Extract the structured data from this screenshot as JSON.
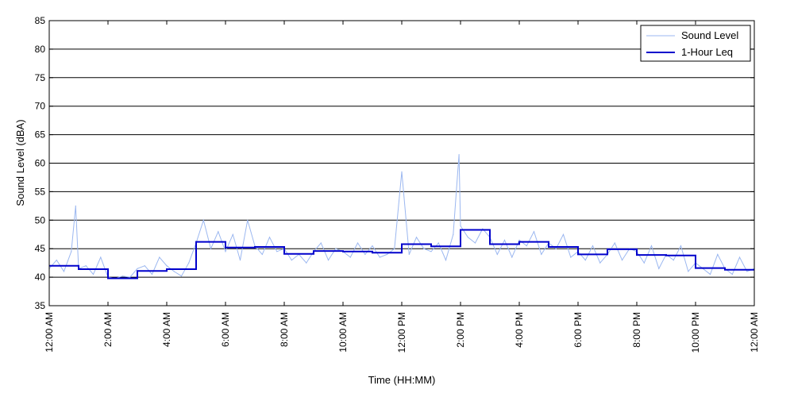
{
  "chart_data": {
    "type": "line",
    "xlabel": "Time (HH:MM)",
    "ylabel": "Sound Level (dBA)",
    "ylim": [
      35,
      85
    ],
    "yticks": [
      35,
      40,
      45,
      50,
      55,
      60,
      65,
      70,
      75,
      80,
      85
    ],
    "xlim": [
      0,
      24
    ],
    "xticks": [
      {
        "hour": 0,
        "label": "12:00 AM"
      },
      {
        "hour": 2,
        "label": "2:00 AM"
      },
      {
        "hour": 4,
        "label": "4:00 AM"
      },
      {
        "hour": 6,
        "label": "6:00 AM"
      },
      {
        "hour": 8,
        "label": "8:00 AM"
      },
      {
        "hour": 10,
        "label": "10:00 AM"
      },
      {
        "hour": 12,
        "label": "12:00 PM"
      },
      {
        "hour": 14,
        "label": "2:00 PM"
      },
      {
        "hour": 16,
        "label": "4:00 PM"
      },
      {
        "hour": 18,
        "label": "6:00 PM"
      },
      {
        "hour": 20,
        "label": "8:00 PM"
      },
      {
        "hour": 22,
        "label": "10:00 PM"
      },
      {
        "hour": 24,
        "label": "12:00 AM"
      }
    ],
    "grid": "horizontal",
    "legend_position": "top-right",
    "series": [
      {
        "name": "Sound Level",
        "color": "#9bb7f0",
        "x": [
          0,
          0.25,
          0.5,
          0.75,
          0.9,
          1.0,
          1.25,
          1.5,
          1.75,
          2.0,
          2.25,
          2.5,
          2.75,
          3.0,
          3.25,
          3.5,
          3.75,
          4.0,
          4.25,
          4.5,
          4.75,
          5.0,
          5.25,
          5.5,
          5.75,
          6.0,
          6.25,
          6.5,
          6.75,
          7.0,
          7.25,
          7.5,
          7.75,
          8.0,
          8.25,
          8.5,
          8.75,
          9.0,
          9.25,
          9.5,
          9.75,
          10.0,
          10.25,
          10.5,
          10.75,
          11.0,
          11.25,
          11.5,
          11.75,
          12.0,
          12.25,
          12.5,
          12.75,
          13.0,
          13.25,
          13.5,
          13.75,
          13.95,
          14.0,
          14.25,
          14.5,
          14.75,
          15.0,
          15.25,
          15.5,
          15.75,
          16.0,
          16.25,
          16.5,
          16.75,
          17.0,
          17.25,
          17.5,
          17.75,
          18.0,
          18.25,
          18.5,
          18.75,
          19.0,
          19.25,
          19.5,
          19.75,
          20.0,
          20.25,
          20.5,
          20.75,
          21.0,
          21.25,
          21.5,
          21.75,
          22.0,
          22.25,
          22.5,
          22.75,
          23.0,
          23.25,
          23.5,
          23.75,
          24.0
        ],
        "values": [
          41.5,
          43,
          41,
          44.5,
          52.5,
          41.5,
          42,
          40.5,
          43.5,
          40,
          39.8,
          40.2,
          40,
          41.5,
          42,
          40.5,
          43.5,
          42,
          41,
          40.2,
          42.5,
          46,
          50,
          45,
          48,
          44.5,
          47.5,
          43,
          50,
          45.5,
          44,
          47,
          44.5,
          45,
          43,
          44,
          42.5,
          44.5,
          46,
          43,
          45,
          44.5,
          43.5,
          46,
          44,
          45.5,
          43.5,
          44,
          45,
          58.5,
          44,
          47,
          45,
          44.5,
          46,
          43,
          47.5,
          61.5,
          49,
          47,
          46,
          48.5,
          47,
          44,
          46.5,
          43.5,
          46.5,
          45.5,
          48,
          44,
          46,
          45,
          47.5,
          43.5,
          44.5,
          43,
          45.5,
          42.5,
          44,
          46,
          43,
          45,
          44.5,
          42.5,
          45.5,
          41.5,
          44,
          43,
          45.5,
          41,
          42.5,
          41.5,
          40.5,
          44,
          41.5,
          40.5,
          43.5,
          41,
          41.5
        ]
      },
      {
        "name": "1-Hour Leq",
        "color": "#0000cc",
        "x": [
          0,
          1,
          2,
          3,
          4,
          5,
          6,
          7,
          8,
          9,
          10,
          11,
          12,
          13,
          14,
          15,
          16,
          17,
          18,
          19,
          20,
          21,
          22,
          23
        ],
        "values": [
          42,
          41.4,
          39.8,
          41.1,
          41.4,
          46.2,
          45.2,
          45.3,
          44.1,
          44.6,
          44.5,
          44.3,
          45.8,
          45.4,
          48.3,
          45.8,
          46.2,
          45.3,
          44.0,
          44.9,
          43.9,
          43.8,
          41.6,
          41.3
        ]
      }
    ]
  }
}
